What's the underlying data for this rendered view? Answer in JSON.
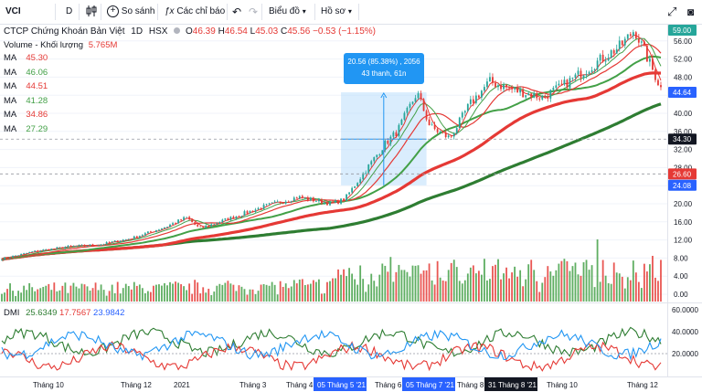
{
  "toolbar": {
    "symbol": "VCI",
    "interval": "D",
    "compare_label": "So sánh",
    "indicators_label": "Các chỉ báo",
    "chart_label": "Biểu đồ",
    "profile_label": "Hồ sơ"
  },
  "legend": {
    "title": "CTCP Chứng Khoán Bản Việt",
    "interval": "1D",
    "exchange": "HSX",
    "ohlc": {
      "o_label": "O",
      "o": "46.39",
      "h_label": "H",
      "h": "46.54",
      "l_label": "L",
      "l": "45.03",
      "c_label": "C",
      "c": "45.56",
      "change": "−0.53 (−1.15%)"
    },
    "volume_label": "Volume - Khối lượng",
    "volume_value": "5.765M",
    "ma": [
      {
        "label": "MA",
        "value": "45.30",
        "color": "#e53935"
      },
      {
        "label": "MA",
        "value": "46.06",
        "color": "#43a047"
      },
      {
        "label": "MA",
        "value": "44.51",
        "color": "#e53935"
      },
      {
        "label": "MA",
        "value": "41.28",
        "color": "#43a047"
      },
      {
        "label": "MA",
        "value": "34.86",
        "color": "#e53935"
      },
      {
        "label": "MA",
        "value": "27.29",
        "color": "#43a047"
      }
    ],
    "dmi_label": "DMI",
    "dmi_values": [
      {
        "value": "25.6349",
        "color": "#2e7d32"
      },
      {
        "value": "17.7567",
        "color": "#e53935"
      },
      {
        "value": "23.9842",
        "color": "#2962ff"
      }
    ]
  },
  "measure": {
    "line1": "20.56 (85.38%) , 2056",
    "line2": "43 thanh, 61n"
  },
  "price_axis": {
    "ticks": [
      "56.00",
      "52.00",
      "48.00",
      "44.00",
      "40.00",
      "36.00",
      "32.00",
      "28.00",
      "24.00",
      "20.00",
      "16.00",
      "12.00",
      "8.00",
      "4.00",
      "0.00"
    ],
    "tags": [
      {
        "value": "59.00",
        "color": "#26a69a"
      },
      {
        "value": "44.64",
        "color": "#2962ff"
      },
      {
        "value": "34.30",
        "color": "#131722"
      },
      {
        "value": "26.60",
        "color": "#e53935"
      },
      {
        "value": "24.08",
        "color": "#2962ff"
      }
    ]
  },
  "dmi_axis": {
    "ticks": [
      "60.0000",
      "40.0000",
      "20.0000"
    ]
  },
  "time_axis": {
    "ticks": [
      "Tháng 10",
      "Tháng 12",
      "2021",
      "Tháng 3",
      "Tháng 4",
      "Tháng 6",
      "Tháng 8",
      "Tháng 10",
      "Tháng 12"
    ],
    "highlights": [
      {
        "label": "05 Tháng 5 '21",
        "color": "#2962ff"
      },
      {
        "label": "05 Tháng 7 '21",
        "color": "#2962ff"
      },
      {
        "label": "31 Tháng 8 '21",
        "color": "#131722"
      }
    ]
  },
  "chart_data": {
    "type": "candlestick",
    "title": "CTCP Chứng Khoán Bản Việt",
    "symbol": "VCI",
    "ylim": [
      0,
      60
    ],
    "price_path": [
      [
        0,
        7.8
      ],
      [
        0.05,
        9.5
      ],
      [
        0.1,
        10.5
      ],
      [
        0.15,
        11.0
      ],
      [
        0.2,
        12.5
      ],
      [
        0.25,
        15.0
      ],
      [
        0.28,
        17.0
      ],
      [
        0.3,
        14.5
      ],
      [
        0.35,
        17.0
      ],
      [
        0.4,
        19.5
      ],
      [
        0.45,
        21.5
      ],
      [
        0.5,
        20.0
      ],
      [
        0.52,
        21.0
      ],
      [
        0.55,
        27.0
      ],
      [
        0.58,
        33.0
      ],
      [
        0.6,
        36.0
      ],
      [
        0.63,
        44.6
      ],
      [
        0.65,
        37.0
      ],
      [
        0.68,
        34.5
      ],
      [
        0.71,
        42.0
      ],
      [
        0.74,
        47.0
      ],
      [
        0.78,
        45.0
      ],
      [
        0.82,
        43.5
      ],
      [
        0.85,
        46.0
      ],
      [
        0.9,
        51.0
      ],
      [
        0.94,
        55.0
      ],
      [
        0.96,
        58.5
      ],
      [
        1.0,
        45.56
      ]
    ],
    "ma_series": [
      {
        "value_last": 45.3,
        "color": "#e53935"
      },
      {
        "value_last": 46.06,
        "color": "#43a047"
      },
      {
        "value_last": 44.51,
        "color": "#e53935"
      },
      {
        "value_last": 41.28,
        "color": "#43a047"
      },
      {
        "value_last": 34.86,
        "color": "#e53935"
      },
      {
        "value_last": 27.29,
        "color": "#43a047"
      }
    ],
    "measure_range": {
      "from": 24.08,
      "to": 44.64
    },
    "dmi_ylim": [
      0,
      65
    ],
    "dmi_last": {
      "plus_di": 25.6349,
      "minus_di": 17.7567,
      "adx": 23.9842
    }
  }
}
